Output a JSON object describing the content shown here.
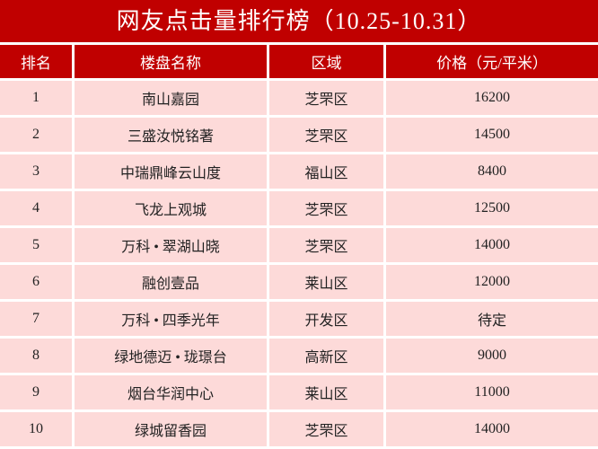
{
  "title": "网友点击量排行榜（10.25-10.31）",
  "colors": {
    "header_bg": "#c00000",
    "row_bg": "#fddad9"
  },
  "table": {
    "headers": [
      "排名",
      "楼盘名称",
      "区域",
      "价格（元/平米）"
    ],
    "rows": [
      [
        "1",
        "南山嘉园",
        "芝罘区",
        "16200"
      ],
      [
        "2",
        "三盛汝悦铭著",
        "芝罘区",
        "14500"
      ],
      [
        "3",
        "中瑞鼎峰云山度",
        "福山区",
        "8400"
      ],
      [
        "4",
        "飞龙上观城",
        "芝罘区",
        "12500"
      ],
      [
        "5",
        "万科 • 翠湖山晓",
        "芝罘区",
        "14000"
      ],
      [
        "6",
        "融创壹品",
        "莱山区",
        "12000"
      ],
      [
        "7",
        "万科 • 四季光年",
        "开发区",
        "待定"
      ],
      [
        "8",
        "绿地德迈 • 珑璟台",
        "高新区",
        "9000"
      ],
      [
        "9",
        "烟台华润中心",
        "莱山区",
        "11000"
      ],
      [
        "10",
        "绿城留香园",
        "芝罘区",
        "14000"
      ]
    ]
  }
}
